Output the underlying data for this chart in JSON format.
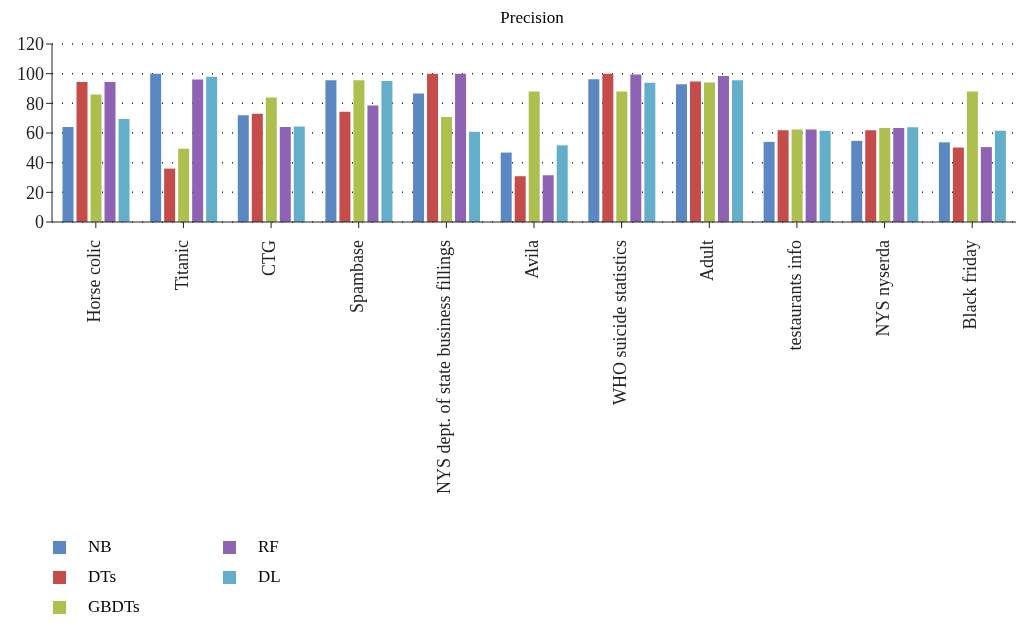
{
  "chart_data": {
    "type": "bar",
    "title": "Precision",
    "categories": [
      "Horse colic",
      "Titanic",
      "CTG",
      "Spambase",
      "NYS dept. of state business fillings",
      "Avila",
      "WHO suicide statistics",
      "Adult",
      "testaurants info",
      "NYS nyserda",
      "Black friday"
    ],
    "series": [
      {
        "name": "NB",
        "color": "#5b87c3",
        "values": [
          64,
          100,
          72,
          95.6,
          86.7,
          46.8,
          96.3,
          92.9,
          54,
          54.7,
          53.7
        ]
      },
      {
        "name": "DTs",
        "color": "#c44c4a",
        "values": [
          94.3,
          36,
          73,
          74.4,
          100,
          30.8,
          100,
          94.8,
          61.8,
          61.8,
          50.2
        ]
      },
      {
        "name": "GBDTs",
        "color": "#adbf4f",
        "values": [
          86,
          49.4,
          84,
          95.6,
          70.8,
          88,
          88,
          94.1,
          62.3,
          63.3,
          88
        ]
      },
      {
        "name": "RF",
        "color": "#8f63b3",
        "values": [
          94.3,
          96,
          64,
          78.6,
          100,
          31.5,
          99.5,
          98.5,
          62.3,
          63.3,
          50.5
        ]
      },
      {
        "name": "DL",
        "color": "#63afc9",
        "values": [
          69.5,
          98,
          64.4,
          95.1,
          60.9,
          51.7,
          93.8,
          95.6,
          61.6,
          63.8,
          61.6
        ]
      }
    ],
    "ylim": [
      0,
      120
    ],
    "yticks": [
      0,
      20,
      40,
      60,
      80,
      100,
      120
    ],
    "grid": "y",
    "legend": "bottom left"
  }
}
